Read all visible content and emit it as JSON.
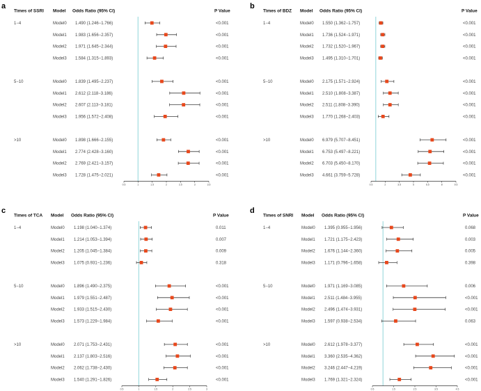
{
  "colors": {
    "marker": "#e8481c",
    "ci_line": "#3a3a3a",
    "reference_line": "#a9dfe2",
    "axis": "#333333"
  },
  "chart_data": [
    {
      "type": "forest",
      "panel_label": "a",
      "headers": {
        "group": "Times of SSRI",
        "model": "Model",
        "or": "Odds Ratio (95% CI)",
        "p": "P Value"
      },
      "reference": 1,
      "xlim": [
        0.5,
        3.5
      ],
      "ticks": [
        "0.5",
        "1",
        "1.5",
        "2",
        "2.5",
        "3",
        "3.5"
      ],
      "groups": [
        {
          "name": "1−4",
          "rows": [
            {
              "model": "Model0",
              "or": 1.49,
              "lo": 1.246,
              "hi": 1.766,
              "p": "<0.001"
            },
            {
              "model": "Model1",
              "or": 1.983,
              "lo": 1.656,
              "hi": 2.357,
              "p": "<0.001"
            },
            {
              "model": "Model2",
              "or": 1.971,
              "lo": 1.645,
              "hi": 2.344,
              "p": "<0.001"
            },
            {
              "model": "Model3",
              "or": 1.584,
              "lo": 1.315,
              "hi": 1.893,
              "p": "<0.001"
            }
          ]
        },
        {
          "name": "5−10",
          "rows": [
            {
              "model": "Model0",
              "or": 1.839,
              "lo": 1.495,
              "hi": 2.237,
              "p": "<0.001"
            },
            {
              "model": "Model1",
              "or": 2.612,
              "lo": 2.118,
              "hi": 3.186,
              "p": "<0.001"
            },
            {
              "model": "Model2",
              "or": 2.607,
              "lo": 2.113,
              "hi": 3.181,
              "p": "<0.001"
            },
            {
              "model": "Model3",
              "or": 1.956,
              "lo": 1.572,
              "hi": 2.408,
              "p": "<0.001"
            }
          ]
        },
        {
          "name": ">10",
          "rows": [
            {
              "model": "Model0",
              "or": 1.898,
              "lo": 1.666,
              "hi": 2.155,
              "p": "<0.001"
            },
            {
              "model": "Model1",
              "or": 2.774,
              "lo": 2.428,
              "hi": 3.16,
              "p": "<0.001"
            },
            {
              "model": "Model2",
              "or": 2.769,
              "lo": 2.421,
              "hi": 3.157,
              "p": "<0.001"
            },
            {
              "model": "Model3",
              "or": 1.728,
              "lo": 1.475,
              "hi": 2.021,
              "p": "<0.001"
            }
          ]
        }
      ]
    },
    {
      "type": "forest",
      "panel_label": "b",
      "headers": {
        "group": "Times of BDZ",
        "model": "Model",
        "or": "Odds Ratio (95% CI)",
        "p": "P Value"
      },
      "reference": 1,
      "xlim": [
        0.5,
        9.5
      ],
      "ticks": [
        "0.5",
        "2",
        "3.5",
        "5",
        "6.5",
        "8",
        "9.5"
      ],
      "groups": [
        {
          "name": "1−4",
          "rows": [
            {
              "model": "Model0",
              "or": 1.55,
              "lo": 1.362,
              "hi": 1.757,
              "p": "<0.001"
            },
            {
              "model": "Model1",
              "or": 1.736,
              "lo": 1.524,
              "hi": 1.971,
              "p": "<0.001"
            },
            {
              "model": "Model2",
              "or": 1.732,
              "lo": 1.52,
              "hi": 1.967,
              "p": "<0.001"
            },
            {
              "model": "Model3",
              "or": 1.495,
              "lo": 1.31,
              "hi": 1.701,
              "p": "<0.001"
            }
          ]
        },
        {
          "name": "5−10",
          "rows": [
            {
              "model": "Model0",
              "or": 2.175,
              "lo": 1.571,
              "hi": 2.924,
              "p": "<0.001"
            },
            {
              "model": "Model1",
              "or": 2.51,
              "lo": 1.808,
              "hi": 3.387,
              "p": "<0.001"
            },
            {
              "model": "Model2",
              "or": 2.511,
              "lo": 1.808,
              "hi": 3.39,
              "p": "<0.001"
            },
            {
              "model": "Model3",
              "or": 1.77,
              "lo": 1.268,
              "hi": 2.403,
              "p": "<0.001"
            }
          ]
        },
        {
          "name": ">10",
          "rows": [
            {
              "model": "Model0",
              "or": 6.979,
              "lo": 5.707,
              "hi": 8.451,
              "p": "<0.001"
            },
            {
              "model": "Model1",
              "or": 6.753,
              "lo": 5.497,
              "hi": 8.221,
              "p": "<0.001"
            },
            {
              "model": "Model2",
              "or": 6.703,
              "lo": 5.45,
              "hi": 8.17,
              "p": "<0.001"
            },
            {
              "model": "Model3",
              "or": 4.661,
              "lo": 3.759,
              "hi": 5.728,
              "p": "<0.001"
            }
          ]
        }
      ]
    },
    {
      "type": "forest",
      "panel_label": "c",
      "headers": {
        "group": "Times of TCA",
        "model": "Model",
        "or": "Odds Ratio (95% CI)",
        "p": "P Value"
      },
      "reference": 1,
      "xlim": [
        0.5,
        3
      ],
      "ticks": [
        "0.5",
        "1",
        "1.5",
        "2",
        "2.5",
        "3"
      ],
      "groups": [
        {
          "name": "1−4",
          "rows": [
            {
              "model": "Model0",
              "or": 1.198,
              "lo": 1.04,
              "hi": 1.374,
              "p": "0.011"
            },
            {
              "model": "Model1",
              "or": 1.214,
              "lo": 1.053,
              "hi": 1.394,
              "p": "0.007"
            },
            {
              "model": "Model2",
              "or": 1.205,
              "lo": 1.045,
              "hi": 1.384,
              "p": "0.009"
            },
            {
              "model": "Model3",
              "or": 1.075,
              "lo": 0.931,
              "hi": 1.236,
              "p": "0.318"
            }
          ]
        },
        {
          "name": "5−10",
          "rows": [
            {
              "model": "Model0",
              "or": 1.896,
              "lo": 1.49,
              "hi": 2.375,
              "p": "<0.001"
            },
            {
              "model": "Model1",
              "or": 1.979,
              "lo": 1.551,
              "hi": 2.487,
              "p": "<0.001"
            },
            {
              "model": "Model2",
              "or": 1.933,
              "lo": 1.515,
              "hi": 2.43,
              "p": "<0.001"
            },
            {
              "model": "Model3",
              "or": 1.573,
              "lo": 1.229,
              "hi": 1.984,
              "p": "<0.001"
            }
          ]
        },
        {
          "name": ">10",
          "rows": [
            {
              "model": "Model0",
              "or": 2.071,
              "lo": 1.753,
              "hi": 2.431,
              "p": "<0.001"
            },
            {
              "model": "Model1",
              "or": 2.137,
              "lo": 1.803,
              "hi": 2.516,
              "p": "<0.001"
            },
            {
              "model": "Model2",
              "or": 2.062,
              "lo": 1.738,
              "hi": 2.43,
              "p": "<0.001"
            },
            {
              "model": "Model3",
              "or": 1.54,
              "lo": 1.291,
              "hi": 1.826,
              "p": "<0.001"
            }
          ]
        }
      ]
    },
    {
      "type": "forest",
      "panel_label": "d",
      "headers": {
        "group": "Times of SNRI",
        "model": "Model",
        "or": "Odds Ratio (95% CI)",
        "p": "P Value"
      },
      "reference": 1,
      "xlim": [
        0.5,
        4.5
      ],
      "ticks": [
        "0.5",
        "1.5",
        "2.5",
        "3.5",
        "4.5"
      ],
      "groups": [
        {
          "name": "1−4",
          "rows": [
            {
              "model": "Model0",
              "or": 1.395,
              "lo": 0.955,
              "hi": 1.956,
              "p": "0.068"
            },
            {
              "model": "Model1",
              "or": 1.721,
              "lo": 1.175,
              "hi": 2.423,
              "p": "0.003"
            },
            {
              "model": "Model2",
              "or": 1.676,
              "lo": 1.144,
              "hi": 2.36,
              "p": "0.005"
            },
            {
              "model": "Model3",
              "or": 1.171,
              "lo": 0.796,
              "hi": 1.658,
              "p": "0.398"
            }
          ]
        },
        {
          "name": "5−10",
          "rows": [
            {
              "model": "Model0",
              "or": 1.971,
              "lo": 1.169,
              "hi": 3.085,
              "p": "0.006"
            },
            {
              "model": "Model1",
              "or": 2.511,
              "lo": 1.484,
              "hi": 3.955,
              "p": "<0.001"
            },
            {
              "model": "Model2",
              "or": 2.496,
              "lo": 1.474,
              "hi": 3.931,
              "p": "<0.001"
            },
            {
              "model": "Model3",
              "or": 1.597,
              "lo": 0.938,
              "hi": 2.534,
              "p": "0.063"
            }
          ]
        },
        {
          "name": ">10",
          "rows": [
            {
              "model": "Model0",
              "or": 2.612,
              "lo": 1.978,
              "hi": 3.377,
              "p": "<0.001"
            },
            {
              "model": "Model1",
              "or": 3.36,
              "lo": 2.535,
              "hi": 4.362,
              "p": "<0.001"
            },
            {
              "model": "Model2",
              "or": 3.246,
              "lo": 2.447,
              "hi": 4.219,
              "p": "<0.001"
            },
            {
              "model": "Model3",
              "or": 1.769,
              "lo": 1.321,
              "hi": 2.324,
              "p": "<0.001"
            }
          ]
        }
      ]
    }
  ]
}
